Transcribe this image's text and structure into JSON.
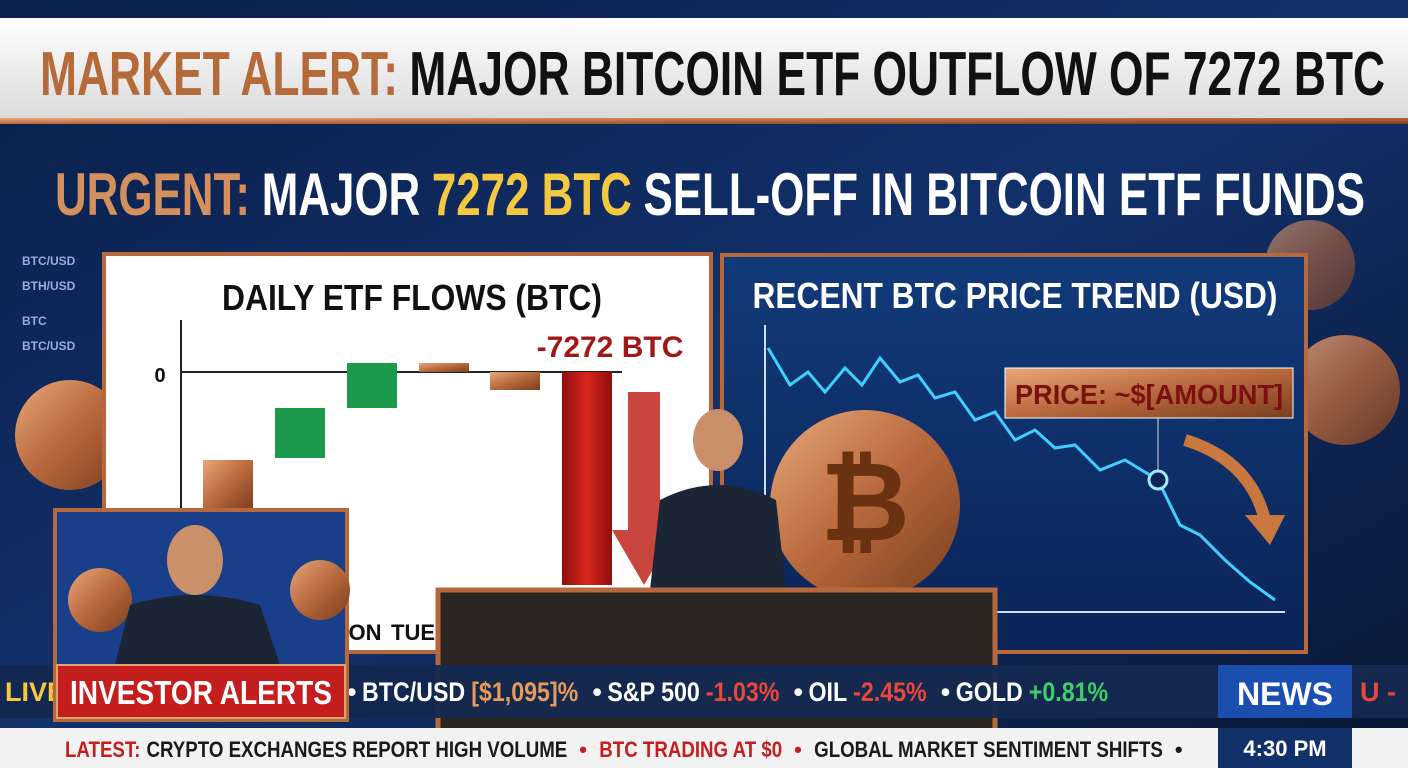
{
  "header": {
    "label": "MARKET ALERT:",
    "title": "MAJOR BITCOIN ETF OUTFLOW OF 7272 BTC"
  },
  "headline": {
    "label": "URGENT:",
    "pre": "MAJOR",
    "highlight": "7272 BTC",
    "post": "SELL-OFF IN BITCOIN ETF FUNDS"
  },
  "side_labels": [
    "BTC/USD",
    "BTH/USD",
    "BTC",
    "BTC/USD"
  ],
  "flows_chart": {
    "title": "DAILY ETF FLOWS (BTC)",
    "yticks": [
      0
    ],
    "outflow": -7272,
    "outflow_label": "-7272 BTC",
    "x_labels": [
      "ON",
      "TUE"
    ]
  },
  "price_chart": {
    "title": "RECENT BTC PRICE TREND (USD)",
    "annotation": "PRICE: ~$[AMOUNT]"
  },
  "inset": {
    "label": "INVESTOR ALERTS"
  },
  "ticker": {
    "live": "LIVE",
    "items": [
      {
        "name": "BTC/USD",
        "value": "[$1,095]%"
      },
      {
        "name": "S&P 500",
        "value": "-1.03%"
      },
      {
        "name": "OIL",
        "value": "-2.45%"
      },
      {
        "name": "GOLD",
        "value": "+0.81%"
      }
    ],
    "badge": "NEWS",
    "tail": "U -"
  },
  "crawl": {
    "label": "LATEST:",
    "items": [
      "CRYPTO EXCHANGES REPORT HIGH VOLUME",
      "BTC TRADING AT $0",
      "GLOBAL MARKET SENTIMENT SHIFTS"
    ],
    "time": "4:30 PM"
  }
}
